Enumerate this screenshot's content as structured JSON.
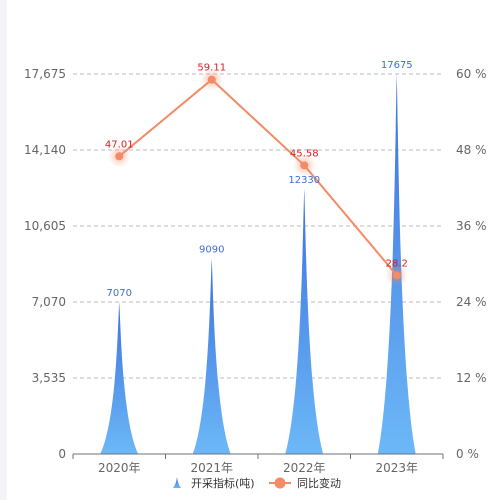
{
  "chart_data": {
    "type": "bar",
    "categories": [
      "2020年",
      "2021年",
      "2022年",
      "2023年"
    ],
    "series": [
      {
        "name": "开采指标(吨)",
        "type": "pictorialBar",
        "axis": "left",
        "values": [
          7070,
          9090,
          12330,
          17675
        ],
        "labels": [
          "7070",
          "9090",
          "12330",
          "17675"
        ],
        "color": "#5b9bea",
        "label_color": "#3d6ed1"
      },
      {
        "name": "同比变动",
        "type": "line",
        "axis": "right",
        "values": [
          47.01,
          59.11,
          45.58,
          28.2
        ],
        "labels": [
          "47.01",
          "59.11",
          "45.58",
          "28.2"
        ],
        "color": "#f48a66",
        "label_color": "#d92020"
      }
    ],
    "y_left": {
      "ylim": [
        0,
        17675
      ],
      "ticks": [
        "0",
        "3,535",
        "7,070",
        "10,605",
        "14,140",
        "17,675"
      ]
    },
    "y_right": {
      "ylim": [
        0,
        60
      ],
      "ticks": [
        "0 %",
        "12 %",
        "24 %",
        "36 %",
        "48 %",
        "60 %"
      ]
    },
    "grid": true,
    "legend": "bottom-center",
    "title": "",
    "xlabel": "",
    "ylabel": ""
  }
}
